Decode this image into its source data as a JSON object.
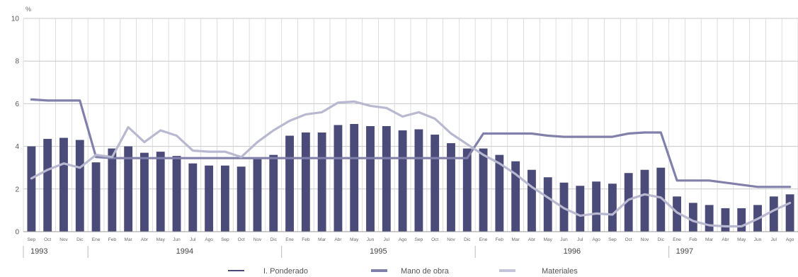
{
  "chart_data": {
    "type": "bar",
    "title": "",
    "xlabel": "",
    "ylabel": "%",
    "ylim": [
      0,
      10
    ],
    "yticks": [
      0,
      2,
      4,
      6,
      8,
      10
    ],
    "grid": true,
    "legend_position": "bottom",
    "categories": [
      "Sep",
      "Oct",
      "Nov",
      "Dic",
      "Ene",
      "Feb",
      "Mar",
      "Abr",
      "May",
      "Jun",
      "Jul",
      "Ago",
      "Sep",
      "Oct",
      "Nov",
      "Dic",
      "Ene",
      "Feb",
      "Mar",
      "Abr",
      "May",
      "Jun",
      "Jul",
      "Ago",
      "Sep",
      "Oct",
      "Nov",
      "Dic",
      "Ene",
      "Feb",
      "Mar",
      "Abr",
      "May",
      "Jun",
      "Jul",
      "Ago",
      "Sep",
      "Oct",
      "Nov",
      "Dic",
      "Ene",
      "Feb",
      "Mar",
      "Abr",
      "May",
      "Jun",
      "Jul",
      "Ago"
    ],
    "years": [
      {
        "label": "1993",
        "start": 0,
        "end": 3
      },
      {
        "label": "1994",
        "start": 4,
        "end": 15
      },
      {
        "label": "1995",
        "start": 16,
        "end": 27
      },
      {
        "label": "1996",
        "start": 28,
        "end": 39
      },
      {
        "label": "1997",
        "start": 40,
        "end": 47
      }
    ],
    "series": [
      {
        "name": "I. Ponderado",
        "kind": "bar",
        "color": "#4b4b7a",
        "values": [
          4.0,
          4.35,
          4.4,
          4.3,
          3.25,
          3.9,
          4.0,
          3.7,
          3.75,
          3.55,
          3.2,
          3.1,
          3.1,
          3.05,
          3.4,
          3.6,
          4.5,
          4.65,
          4.65,
          5.0,
          5.05,
          4.95,
          4.95,
          4.75,
          4.8,
          4.55,
          4.15,
          3.9,
          3.9,
          3.6,
          3.3,
          2.9,
          2.55,
          2.3,
          2.15,
          2.35,
          2.25,
          2.75,
          2.9,
          3.0,
          1.65,
          1.35,
          1.25,
          1.1,
          1.1,
          1.25,
          1.65,
          1.75
        ]
      },
      {
        "name": "Mano de obra",
        "kind": "line",
        "color": "#8080aa",
        "values": [
          6.2,
          6.15,
          6.15,
          6.15,
          3.5,
          3.45,
          3.45,
          3.45,
          3.45,
          3.45,
          3.45,
          3.45,
          3.45,
          3.45,
          3.45,
          3.45,
          3.45,
          3.45,
          3.45,
          3.45,
          3.45,
          3.45,
          3.45,
          3.45,
          3.45,
          3.45,
          3.45,
          3.45,
          4.6,
          4.6,
          4.6,
          4.6,
          4.5,
          4.45,
          4.45,
          4.45,
          4.45,
          4.6,
          4.65,
          4.65,
          2.4,
          2.4,
          2.4,
          2.3,
          2.2,
          2.1,
          2.1,
          2.1
        ]
      },
      {
        "name": "Materiales",
        "kind": "line",
        "color": "#b8b8d0",
        "values": [
          2.5,
          2.9,
          3.2,
          3.0,
          3.6,
          3.5,
          4.9,
          4.2,
          4.75,
          4.5,
          3.8,
          3.75,
          3.75,
          3.5,
          4.2,
          4.75,
          5.2,
          5.5,
          5.6,
          6.05,
          6.1,
          5.9,
          5.8,
          5.4,
          5.6,
          5.3,
          4.6,
          4.1,
          3.6,
          3.2,
          2.7,
          2.1,
          1.6,
          1.1,
          0.75,
          0.85,
          0.8,
          1.5,
          1.75,
          1.6,
          0.9,
          0.5,
          0.3,
          0.25,
          0.25,
          0.6,
          1.0,
          1.35
        ]
      }
    ]
  }
}
